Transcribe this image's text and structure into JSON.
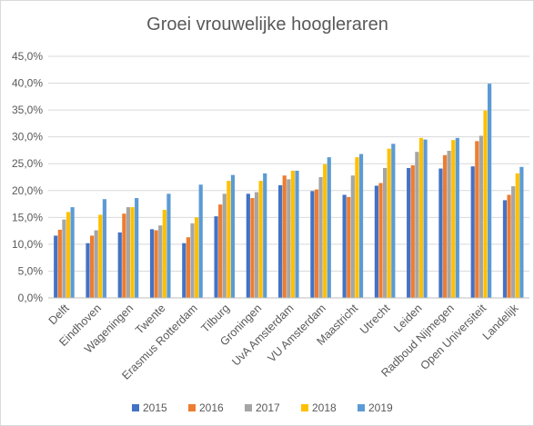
{
  "chart_data": {
    "type": "bar",
    "title": "Groei vrouwelijke hoogleraren",
    "xlabel": "",
    "ylabel": "",
    "ylim": [
      0,
      45
    ],
    "yticks": [
      "0,0%",
      "5,0%",
      "10,0%",
      "15,0%",
      "20,0%",
      "25,0%",
      "30,0%",
      "35,0%",
      "40,0%",
      "45,0%"
    ],
    "ytick_values": [
      0,
      5,
      10,
      15,
      20,
      25,
      30,
      35,
      40,
      45
    ],
    "grid": true,
    "legend_position": "bottom",
    "categories": [
      "Delft",
      "Eindhoven",
      "Wageningen",
      "Twente",
      "Erasmus Rotterdam",
      "Tilburg",
      "Groningen",
      "UvA Amsterdam",
      "VU Amsterdam",
      "Maastricht",
      "Utrecht",
      "Leiden",
      "Radboud Nijmegen",
      "Open Universiteit",
      "Landelijk"
    ],
    "series": [
      {
        "name": "2015",
        "color": "#4472c4",
        "values": [
          11.6,
          10.2,
          12.2,
          12.8,
          10.2,
          15.2,
          19.4,
          21.0,
          19.9,
          19.2,
          20.9,
          24.2,
          24.1,
          24.5,
          18.2
        ]
      },
      {
        "name": "2016",
        "color": "#ed7d31",
        "values": [
          12.7,
          11.6,
          15.7,
          12.6,
          11.3,
          17.4,
          18.6,
          22.8,
          20.2,
          18.8,
          21.4,
          24.7,
          26.6,
          29.2,
          19.2
        ]
      },
      {
        "name": "2017",
        "color": "#a5a5a5",
        "values": [
          14.6,
          12.6,
          16.9,
          13.5,
          13.9,
          19.4,
          19.7,
          22.1,
          22.5,
          22.8,
          24.2,
          27.2,
          27.4,
          30.2,
          20.8
        ]
      },
      {
        "name": "2018",
        "color": "#ffc000",
        "values": [
          16.0,
          15.5,
          16.9,
          16.4,
          15.0,
          21.8,
          21.8,
          23.7,
          24.9,
          26.2,
          27.8,
          29.8,
          29.4,
          34.9,
          23.2
        ]
      },
      {
        "name": "2019",
        "color": "#5b9bd5",
        "values": [
          16.9,
          18.4,
          18.6,
          19.4,
          21.1,
          22.9,
          23.2,
          23.7,
          26.2,
          26.8,
          28.7,
          29.5,
          29.8,
          39.9,
          24.4
        ]
      }
    ]
  }
}
